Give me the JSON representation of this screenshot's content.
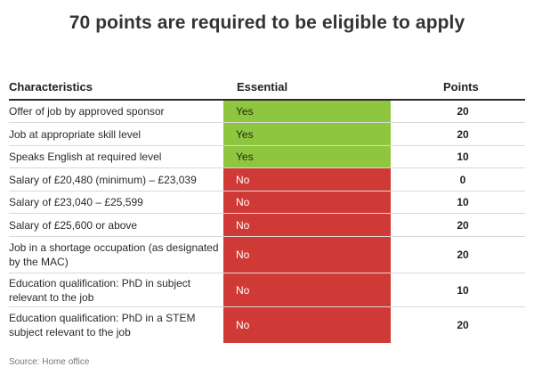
{
  "title": "70 points are required to be eligible to apply",
  "table": {
    "headers": {
      "characteristics": "Characteristics",
      "essential": "Essential",
      "points": "Points"
    },
    "rows": [
      {
        "characteristic": "Offer of job by approved sponsor",
        "essential": "Yes",
        "points": "20"
      },
      {
        "characteristic": "Job at appropriate skill level",
        "essential": "Yes",
        "points": "20"
      },
      {
        "characteristic": "Speaks English at required level",
        "essential": "Yes",
        "points": "10"
      },
      {
        "characteristic": "Salary of £20,480 (minimum) – £23,039",
        "essential": "No",
        "points": "0"
      },
      {
        "characteristic": "Salary of £23,040 – £25,599",
        "essential": "No",
        "points": "10"
      },
      {
        "characteristic": "Salary of £25,600 or above",
        "essential": "No",
        "points": "20"
      },
      {
        "characteristic": "Job in a shortage occupation (as designated by the MAC)",
        "essential": "No",
        "points": "20"
      },
      {
        "characteristic": "Education qualification: PhD in subject relevant to the job",
        "essential": "No",
        "points": "10"
      },
      {
        "characteristic": "Education qualification: PhD in a STEM subject relevant to the job",
        "essential": "No",
        "points": "20"
      }
    ]
  },
  "source": "Source: Home office",
  "colors": {
    "yes": "#8fc63f",
    "no": "#d03a36"
  }
}
